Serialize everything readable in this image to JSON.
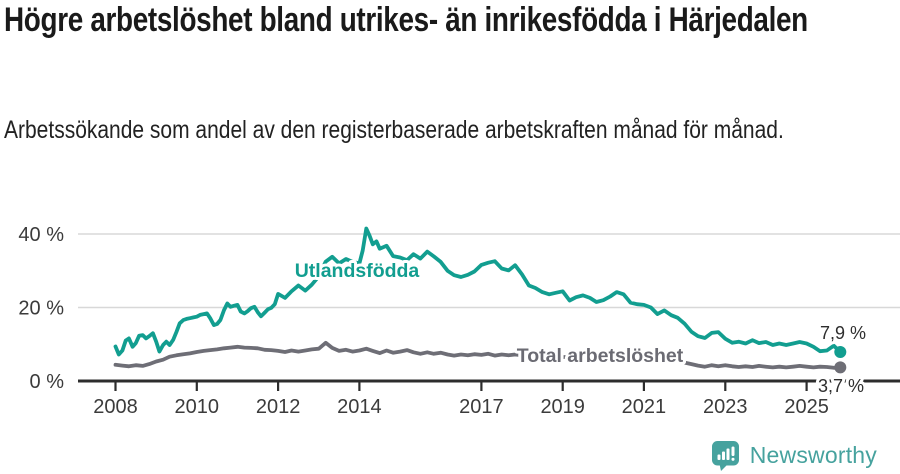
{
  "header": {
    "title": "Högre arbetslöshet bland utrikes- än inrikesfödda i Härjedalen",
    "subtitle": "Arbetssökande som andel av den registerbaserade arbetskraften månad för månad."
  },
  "chart_data": {
    "type": "line",
    "title": "Högre arbetslöshet bland utrikes- än inrikesfödda i Härjedalen",
    "subtitle": "Arbetssökande som andel av den registerbaserade arbetskraften månad för månad.",
    "x_unit": "decimal_year_monthly",
    "xlim": [
      2007.1,
      2027.1
    ],
    "ylim": [
      0,
      44
    ],
    "grid": "horizontal",
    "x_ticks": [
      {
        "value": 2008,
        "label": "2008"
      },
      {
        "value": 2010,
        "label": "2010"
      },
      {
        "value": 2012,
        "label": "2012"
      },
      {
        "value": 2014,
        "label": "2014"
      },
      {
        "value": 2017,
        "label": "2017"
      },
      {
        "value": 2019,
        "label": "2019"
      },
      {
        "value": 2021,
        "label": "2021"
      },
      {
        "value": 2023,
        "label": "2023"
      },
      {
        "value": 2025,
        "label": "2025"
      }
    ],
    "y_ticks": [
      {
        "value": 0,
        "label": "0 %"
      },
      {
        "value": 20,
        "label": "20 %"
      },
      {
        "value": 40,
        "label": "40 %"
      }
    ],
    "series": [
      {
        "name": "Utlandsfödda",
        "color": "#129e90",
        "end_label": "7,9 %",
        "points": [
          [
            2008.0,
            9.4
          ],
          [
            2008.08,
            7.2
          ],
          [
            2008.17,
            8.3
          ],
          [
            2008.25,
            11.0
          ],
          [
            2008.33,
            11.6
          ],
          [
            2008.42,
            9.3
          ],
          [
            2008.5,
            10.3
          ],
          [
            2008.58,
            12.3
          ],
          [
            2008.67,
            12.5
          ],
          [
            2008.75,
            11.6
          ],
          [
            2008.83,
            12.2
          ],
          [
            2008.92,
            13.0
          ],
          [
            2009.0,
            10.7
          ],
          [
            2009.08,
            8.0
          ],
          [
            2009.17,
            9.8
          ],
          [
            2009.25,
            10.7
          ],
          [
            2009.33,
            9.8
          ],
          [
            2009.42,
            11.2
          ],
          [
            2009.5,
            13.4
          ],
          [
            2009.58,
            15.7
          ],
          [
            2009.67,
            16.6
          ],
          [
            2009.75,
            16.9
          ],
          [
            2009.83,
            17.1
          ],
          [
            2009.92,
            17.3
          ],
          [
            2010.0,
            17.5
          ],
          [
            2010.08,
            18.0
          ],
          [
            2010.17,
            18.2
          ],
          [
            2010.25,
            18.4
          ],
          [
            2010.33,
            17.1
          ],
          [
            2010.42,
            15.2
          ],
          [
            2010.5,
            15.5
          ],
          [
            2010.58,
            16.6
          ],
          [
            2010.67,
            19.3
          ],
          [
            2010.75,
            21.1
          ],
          [
            2010.83,
            20.2
          ],
          [
            2010.92,
            20.5
          ],
          [
            2011.0,
            20.7
          ],
          [
            2011.08,
            18.9
          ],
          [
            2011.17,
            18.4
          ],
          [
            2011.25,
            19.0
          ],
          [
            2011.33,
            19.8
          ],
          [
            2011.42,
            20.2
          ],
          [
            2011.5,
            18.7
          ],
          [
            2011.58,
            17.6
          ],
          [
            2011.67,
            18.6
          ],
          [
            2011.75,
            19.5
          ],
          [
            2011.83,
            19.9
          ],
          [
            2011.92,
            20.9
          ],
          [
            2012.0,
            23.7
          ],
          [
            2012.17,
            22.6
          ],
          [
            2012.33,
            24.4
          ],
          [
            2012.5,
            26.0
          ],
          [
            2012.67,
            24.6
          ],
          [
            2012.83,
            26.2
          ],
          [
            2013.0,
            28.5
          ],
          [
            2013.17,
            32.5
          ],
          [
            2013.33,
            33.8
          ],
          [
            2013.5,
            32.0
          ],
          [
            2013.67,
            33.2
          ],
          [
            2013.83,
            32.4
          ],
          [
            2014.0,
            32.0
          ],
          [
            2014.08,
            35.5
          ],
          [
            2014.17,
            41.5
          ],
          [
            2014.25,
            39.5
          ],
          [
            2014.33,
            37.2
          ],
          [
            2014.42,
            38.0
          ],
          [
            2014.5,
            36.0
          ],
          [
            2014.67,
            36.8
          ],
          [
            2014.83,
            34.0
          ],
          [
            2015.0,
            33.6
          ],
          [
            2015.17,
            32.9
          ],
          [
            2015.33,
            34.5
          ],
          [
            2015.5,
            33.3
          ],
          [
            2015.67,
            35.2
          ],
          [
            2015.83,
            33.9
          ],
          [
            2016.0,
            32.4
          ],
          [
            2016.17,
            30.0
          ],
          [
            2016.33,
            28.8
          ],
          [
            2016.5,
            28.3
          ],
          [
            2016.67,
            28.9
          ],
          [
            2016.83,
            29.8
          ],
          [
            2017.0,
            31.6
          ],
          [
            2017.17,
            32.2
          ],
          [
            2017.33,
            32.6
          ],
          [
            2017.5,
            30.6
          ],
          [
            2017.67,
            30.1
          ],
          [
            2017.83,
            31.5
          ],
          [
            2018.0,
            29.0
          ],
          [
            2018.17,
            26.0
          ],
          [
            2018.33,
            25.3
          ],
          [
            2018.5,
            24.2
          ],
          [
            2018.67,
            23.6
          ],
          [
            2018.83,
            24.0
          ],
          [
            2019.0,
            24.4
          ],
          [
            2019.17,
            21.9
          ],
          [
            2019.33,
            22.8
          ],
          [
            2019.5,
            23.3
          ],
          [
            2019.67,
            22.6
          ],
          [
            2019.83,
            21.5
          ],
          [
            2020.0,
            22.0
          ],
          [
            2020.17,
            23.0
          ],
          [
            2020.33,
            24.2
          ],
          [
            2020.5,
            23.6
          ],
          [
            2020.67,
            21.3
          ],
          [
            2020.83,
            20.9
          ],
          [
            2021.0,
            20.7
          ],
          [
            2021.17,
            20.0
          ],
          [
            2021.33,
            18.2
          ],
          [
            2021.5,
            19.2
          ],
          [
            2021.67,
            17.9
          ],
          [
            2021.83,
            17.2
          ],
          [
            2022.0,
            15.6
          ],
          [
            2022.17,
            13.4
          ],
          [
            2022.33,
            12.2
          ],
          [
            2022.5,
            11.7
          ],
          [
            2022.67,
            13.1
          ],
          [
            2022.83,
            13.3
          ],
          [
            2023.0,
            11.5
          ],
          [
            2023.17,
            10.4
          ],
          [
            2023.33,
            10.7
          ],
          [
            2023.5,
            10.2
          ],
          [
            2023.67,
            11.1
          ],
          [
            2023.83,
            10.3
          ],
          [
            2024.0,
            10.6
          ],
          [
            2024.17,
            9.8
          ],
          [
            2024.33,
            10.2
          ],
          [
            2024.5,
            9.8
          ],
          [
            2024.67,
            10.2
          ],
          [
            2024.83,
            10.6
          ],
          [
            2025.0,
            10.2
          ],
          [
            2025.17,
            9.3
          ],
          [
            2025.33,
            8.1
          ],
          [
            2025.5,
            8.3
          ],
          [
            2025.67,
            9.6
          ],
          [
            2025.83,
            7.9
          ]
        ]
      },
      {
        "name": "Total arbetslöshet",
        "color": "#6e6e76",
        "end_label": "3,7 %",
        "points": [
          [
            2008.0,
            4.4
          ],
          [
            2008.17,
            4.2
          ],
          [
            2008.33,
            4.0
          ],
          [
            2008.5,
            4.3
          ],
          [
            2008.67,
            4.1
          ],
          [
            2008.83,
            4.6
          ],
          [
            2009.0,
            5.3
          ],
          [
            2009.17,
            5.8
          ],
          [
            2009.33,
            6.6
          ],
          [
            2009.5,
            7.0
          ],
          [
            2009.67,
            7.3
          ],
          [
            2009.83,
            7.5
          ],
          [
            2010.0,
            7.9
          ],
          [
            2010.17,
            8.2
          ],
          [
            2010.33,
            8.4
          ],
          [
            2010.5,
            8.6
          ],
          [
            2010.67,
            8.9
          ],
          [
            2010.83,
            9.1
          ],
          [
            2011.0,
            9.3
          ],
          [
            2011.17,
            9.1
          ],
          [
            2011.33,
            9.0
          ],
          [
            2011.5,
            8.9
          ],
          [
            2011.67,
            8.5
          ],
          [
            2011.83,
            8.4
          ],
          [
            2012.0,
            8.2
          ],
          [
            2012.17,
            7.9
          ],
          [
            2012.33,
            8.3
          ],
          [
            2012.5,
            8.0
          ],
          [
            2012.67,
            8.3
          ],
          [
            2012.83,
            8.6
          ],
          [
            2013.0,
            8.8
          ],
          [
            2013.17,
            10.4
          ],
          [
            2013.33,
            9.0
          ],
          [
            2013.5,
            8.2
          ],
          [
            2013.67,
            8.5
          ],
          [
            2013.83,
            8.0
          ],
          [
            2014.0,
            8.3
          ],
          [
            2014.17,
            8.8
          ],
          [
            2014.33,
            8.2
          ],
          [
            2014.5,
            7.6
          ],
          [
            2014.67,
            8.3
          ],
          [
            2014.83,
            7.7
          ],
          [
            2015.0,
            8.0
          ],
          [
            2015.17,
            8.4
          ],
          [
            2015.33,
            7.8
          ],
          [
            2015.5,
            7.4
          ],
          [
            2015.67,
            7.8
          ],
          [
            2015.83,
            7.4
          ],
          [
            2016.0,
            7.7
          ],
          [
            2016.17,
            7.2
          ],
          [
            2016.33,
            6.9
          ],
          [
            2016.5,
            7.2
          ],
          [
            2016.67,
            7.0
          ],
          [
            2016.83,
            7.3
          ],
          [
            2017.0,
            7.1
          ],
          [
            2017.17,
            7.4
          ],
          [
            2017.33,
            6.9
          ],
          [
            2017.5,
            7.2
          ],
          [
            2017.67,
            7.0
          ],
          [
            2017.83,
            7.2
          ],
          [
            2018.0,
            7.0
          ],
          [
            2018.17,
            6.8
          ],
          [
            2018.33,
            6.6
          ],
          [
            2018.5,
            6.7
          ],
          [
            2018.67,
            6.5
          ],
          [
            2018.83,
            6.7
          ],
          [
            2019.0,
            6.5
          ],
          [
            2019.17,
            6.6
          ],
          [
            2019.33,
            6.4
          ],
          [
            2019.5,
            6.6
          ],
          [
            2019.67,
            6.4
          ],
          [
            2019.83,
            6.5
          ],
          [
            2020.0,
            6.6
          ],
          [
            2020.17,
            7.2
          ],
          [
            2020.33,
            7.8
          ],
          [
            2020.5,
            7.6
          ],
          [
            2020.67,
            7.4
          ],
          [
            2020.83,
            7.2
          ],
          [
            2021.0,
            7.0
          ],
          [
            2021.17,
            6.8
          ],
          [
            2021.33,
            6.4
          ],
          [
            2021.5,
            6.1
          ],
          [
            2021.67,
            5.8
          ],
          [
            2021.83,
            5.4
          ],
          [
            2022.0,
            5.0
          ],
          [
            2022.17,
            4.6
          ],
          [
            2022.33,
            4.2
          ],
          [
            2022.5,
            3.9
          ],
          [
            2022.67,
            4.3
          ],
          [
            2022.83,
            4.0
          ],
          [
            2023.0,
            4.3
          ],
          [
            2023.17,
            4.0
          ],
          [
            2023.33,
            3.8
          ],
          [
            2023.5,
            4.0
          ],
          [
            2023.67,
            3.8
          ],
          [
            2023.83,
            4.1
          ],
          [
            2024.0,
            3.9
          ],
          [
            2024.17,
            3.7
          ],
          [
            2024.33,
            3.9
          ],
          [
            2024.5,
            3.7
          ],
          [
            2024.67,
            3.9
          ],
          [
            2024.83,
            4.1
          ],
          [
            2025.0,
            3.9
          ],
          [
            2025.17,
            3.7
          ],
          [
            2025.33,
            3.9
          ],
          [
            2025.5,
            3.8
          ],
          [
            2025.67,
            3.6
          ],
          [
            2025.83,
            3.7
          ]
        ]
      }
    ],
    "legend_position": "inline-labels-on-lines"
  },
  "branding": {
    "logo_text": "Newsworthy",
    "logo_color": "#46a29e",
    "logo_icon": "bar-chart-speech-bubble-icon"
  },
  "colors": {
    "accent_teal": "#129e90",
    "line_gray": "#6e6e76",
    "gridline": "#d8d8d8",
    "axis": "#2d2d2d",
    "text_dark": "#1a1a1a"
  }
}
